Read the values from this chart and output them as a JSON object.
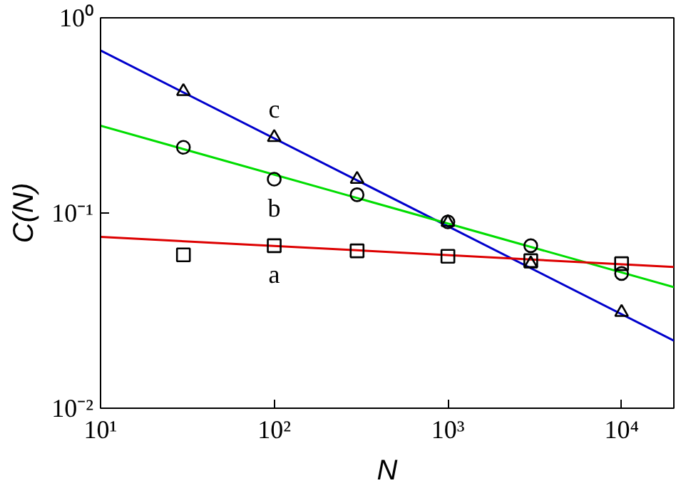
{
  "chart_data": {
    "type": "scatter",
    "xlabel": "N",
    "ylabel": "C(N)",
    "log": "xy",
    "grid": false,
    "xlim": [
      10,
      20000
    ],
    "ylim": [
      0.01,
      1
    ],
    "xticks": [
      {
        "value": 10,
        "label": "10¹"
      },
      {
        "value": 100,
        "label": "10²"
      },
      {
        "value": 1000,
        "label": "10³"
      },
      {
        "value": 10000,
        "label": "10⁴"
      }
    ],
    "yticks": [
      {
        "value": 0.01,
        "label": "10⁻²"
      },
      {
        "value": 0.1,
        "label": "10⁻¹"
      },
      {
        "value": 1,
        "label": "10⁰"
      }
    ],
    "series": [
      {
        "type": "line",
        "color": "#0000cc",
        "x": [
          10,
          20000
        ],
        "values": [
          0.68,
          0.0222
        ],
        "line_style": "solid",
        "marker": "none"
      },
      {
        "type": "line",
        "color": "#00dd00",
        "x": [
          10,
          20000
        ],
        "values": [
          0.28,
          0.0417
        ],
        "line_style": "solid",
        "marker": "none"
      },
      {
        "type": "line",
        "color": "#dd0000",
        "x": [
          10,
          20000
        ],
        "values": [
          0.0755,
          0.0529
        ],
        "line_style": "solid",
        "marker": "none"
      },
      {
        "name": "c",
        "color": "#000000",
        "marker": "triangle",
        "x": [
          30,
          100,
          300,
          1000,
          3000,
          10000
        ],
        "values": [
          0.42,
          0.244,
          0.149,
          0.0896,
          0.055,
          0.031
        ]
      },
      {
        "name": "b",
        "color": "#000000",
        "marker": "circle",
        "x": [
          30,
          100,
          300,
          1000,
          3000,
          10000
        ],
        "values": [
          0.217,
          0.149,
          0.124,
          0.09,
          0.068,
          0.049
        ]
      },
      {
        "name": "a",
        "color": "#000000",
        "marker": "square",
        "x": [
          30,
          100,
          300,
          1000,
          3000,
          10000
        ],
        "values": [
          0.061,
          0.068,
          0.064,
          0.06,
          0.057,
          0.055
        ]
      }
    ]
  }
}
